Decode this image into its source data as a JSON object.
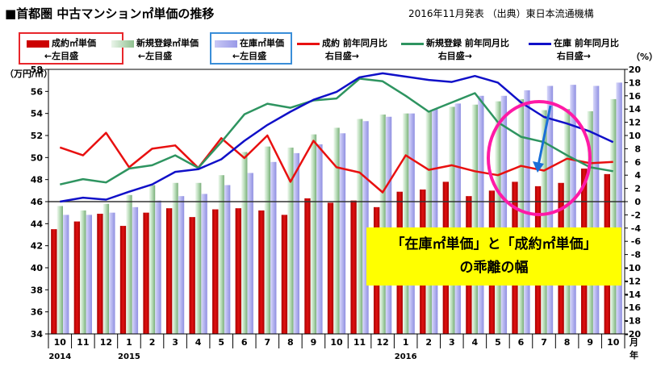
{
  "header": {
    "title": "■首都圏 中古マンション㎡単価の推移",
    "source": "2016年11月発表 （出典）東日本流通機構"
  },
  "legend": [
    {
      "label": "成約㎡単価",
      "sub": "←左目盛",
      "kind": "bar",
      "color": "#cc0000"
    },
    {
      "label": "新規登録㎡単価",
      "sub": "←左目盛",
      "kind": "bar",
      "color": "#8fc08f"
    },
    {
      "label": "在庫㎡単価",
      "sub": "←左目盛",
      "kind": "bar",
      "color": "#9a9ae8"
    },
    {
      "label": "成約 前年同月比",
      "sub": "右目盛→",
      "kind": "line",
      "color": "#e81010"
    },
    {
      "label": "新規登録 前年同月比",
      "sub": "右目盛→",
      "kind": "line",
      "color": "#2e9460"
    },
    {
      "label": "在庫 前年同月比",
      "sub": "右目盛→",
      "kind": "line",
      "color": "#1010c8"
    }
  ],
  "annotation": {
    "line1": "「在庫㎡単価」と「成約㎡単価」",
    "line2": "の乖離の幅"
  },
  "chart_data": {
    "type": "bar",
    "categories": [
      "10",
      "11",
      "12",
      "1",
      "2",
      "3",
      "4",
      "5",
      "6",
      "7",
      "8",
      "9",
      "10",
      "11",
      "12",
      "1",
      "2",
      "3",
      "4",
      "5",
      "6",
      "7",
      "8",
      "9",
      "10"
    ],
    "year_labels": [
      {
        "index": 0,
        "label": "2014"
      },
      {
        "index": 3,
        "label": "2015"
      },
      {
        "index": 15,
        "label": "2016"
      }
    ],
    "month_axis_unit": "月",
    "year_axis_unit": "年",
    "left_axis": {
      "label": "（万円/㎡）",
      "min": 34,
      "max": 58,
      "step": 2
    },
    "right_axis": {
      "label": "（%）",
      "min": -20,
      "max": 20,
      "step": 2
    },
    "series": [
      {
        "name": "成約㎡単価",
        "axis": "left",
        "kind": "bar",
        "values": [
          43.5,
          44.2,
          44.9,
          43.8,
          45.0,
          45.4,
          44.6,
          45.3,
          45.4,
          45.2,
          44.8,
          46.3,
          45.9,
          46.1,
          45.5,
          46.9,
          47.1,
          47.8,
          46.5,
          47.0,
          47.8,
          47.4,
          47.7,
          49.0,
          48.5
        ]
      },
      {
        "name": "新規登録㎡単価",
        "axis": "left",
        "kind": "bar",
        "values": [
          45.6,
          45.2,
          45.8,
          46.6,
          47.5,
          47.7,
          47.7,
          48.4,
          50.5,
          51.0,
          50.9,
          52.1,
          52.7,
          53.5,
          53.9,
          54.0,
          54.2,
          54.6,
          54.8,
          55.1,
          55.3,
          54.3,
          54.4,
          54.2,
          55.3
        ]
      },
      {
        "name": "在庫㎡単価",
        "axis": "left",
        "kind": "bar",
        "values": [
          44.8,
          44.8,
          45.0,
          45.5,
          46.1,
          46.5,
          46.7,
          47.5,
          48.6,
          49.6,
          50.4,
          51.2,
          52.2,
          53.3,
          53.7,
          54.0,
          54.4,
          54.9,
          55.6,
          55.6,
          56.1,
          56.5,
          56.6,
          56.5,
          56.8
        ]
      },
      {
        "name": "成約 前年同月比",
        "axis": "right",
        "kind": "line",
        "values": [
          8.2,
          7.0,
          10.4,
          5.2,
          8.0,
          8.5,
          5.1,
          9.6,
          6.6,
          10.0,
          3.0,
          9.2,
          5.2,
          4.4,
          1.4,
          7.0,
          4.8,
          5.5,
          4.6,
          4.0,
          5.4,
          4.7,
          6.5,
          5.8,
          6.0
        ]
      },
      {
        "name": "新規登録 前年同月比",
        "axis": "right",
        "kind": "line",
        "values": [
          2.6,
          3.4,
          2.9,
          5.0,
          5.5,
          7.0,
          5.1,
          9.0,
          13.2,
          14.8,
          14.2,
          15.3,
          15.6,
          18.6,
          18.2,
          16.0,
          13.6,
          15.0,
          16.4,
          12.0,
          9.8,
          9.0,
          7.0,
          5.2,
          4.6
        ]
      },
      {
        "name": "在庫 前年同月比",
        "axis": "right",
        "kind": "line",
        "values": [
          0.0,
          0.6,
          0.3,
          1.5,
          2.6,
          4.5,
          4.9,
          6.4,
          9.2,
          11.6,
          13.6,
          15.4,
          16.6,
          18.8,
          19.4,
          18.9,
          18.4,
          18.1,
          19.0,
          18.0,
          15.0,
          12.8,
          11.8,
          10.6,
          9.0
        ]
      }
    ],
    "reference_line": {
      "axis": "right",
      "value": 0
    }
  }
}
